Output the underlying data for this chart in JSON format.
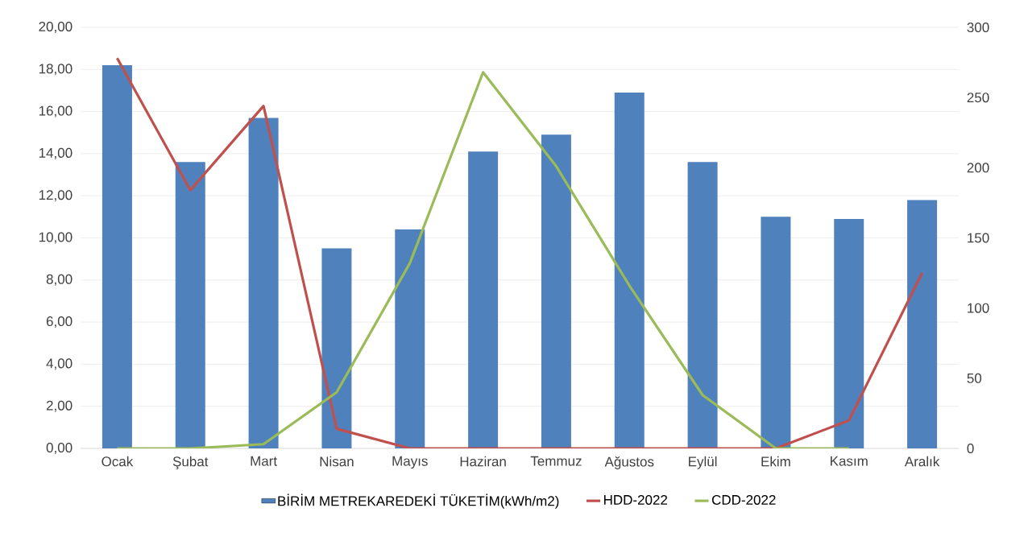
{
  "chart_data": {
    "type": "bar",
    "categories": [
      "Ocak",
      "Şubat",
      "Mart",
      "Nisan",
      "Mayıs",
      "Haziran",
      "Temmuz",
      "Ağustos",
      "Eylül",
      "Ekim",
      "Kasım",
      "Aralık"
    ],
    "series": [
      {
        "name": "BİRİM METREKAREDEKİ TÜKETİM(kWh/m2)",
        "color": "#4f81bd",
        "values": [
          18.2,
          13.6,
          15.7,
          9.5,
          10.4,
          14.1,
          14.9,
          16.9,
          13.6,
          11.0,
          10.9,
          11.8
        ]
      },
      {
        "name": "HDD-2022",
        "type": "line",
        "axis": "y2",
        "color": "#c0504d",
        "values": [
          278,
          184,
          244,
          14,
          0,
          0,
          0,
          0,
          0,
          0,
          20,
          125
        ]
      },
      {
        "name": "CDD-2022",
        "type": "line",
        "axis": "y2",
        "color": "#9bbb59",
        "values": [
          0,
          0,
          3,
          40,
          132,
          268,
          201,
          116,
          38,
          0,
          0,
          null
        ]
      }
    ],
    "ylim": [
      0,
      20
    ],
    "yticks": [
      {
        "value": 0,
        "label": "0,00"
      },
      {
        "value": 2,
        "label": "2,00"
      },
      {
        "value": 4,
        "label": "4,00"
      },
      {
        "value": 6,
        "label": "6,00"
      },
      {
        "value": 8,
        "label": "8,00"
      },
      {
        "value": 10,
        "label": "10,00"
      },
      {
        "value": 12,
        "label": "12,00"
      },
      {
        "value": 14,
        "label": "14,00"
      },
      {
        "value": 16,
        "label": "16,00"
      },
      {
        "value": 18,
        "label": "18,00"
      },
      {
        "value": 20,
        "label": "20,00"
      }
    ],
    "y2lim": [
      0,
      300
    ],
    "y2ticks": [
      0,
      50,
      100,
      150,
      200,
      250,
      300
    ],
    "grid": "y",
    "legend": "bottom"
  }
}
